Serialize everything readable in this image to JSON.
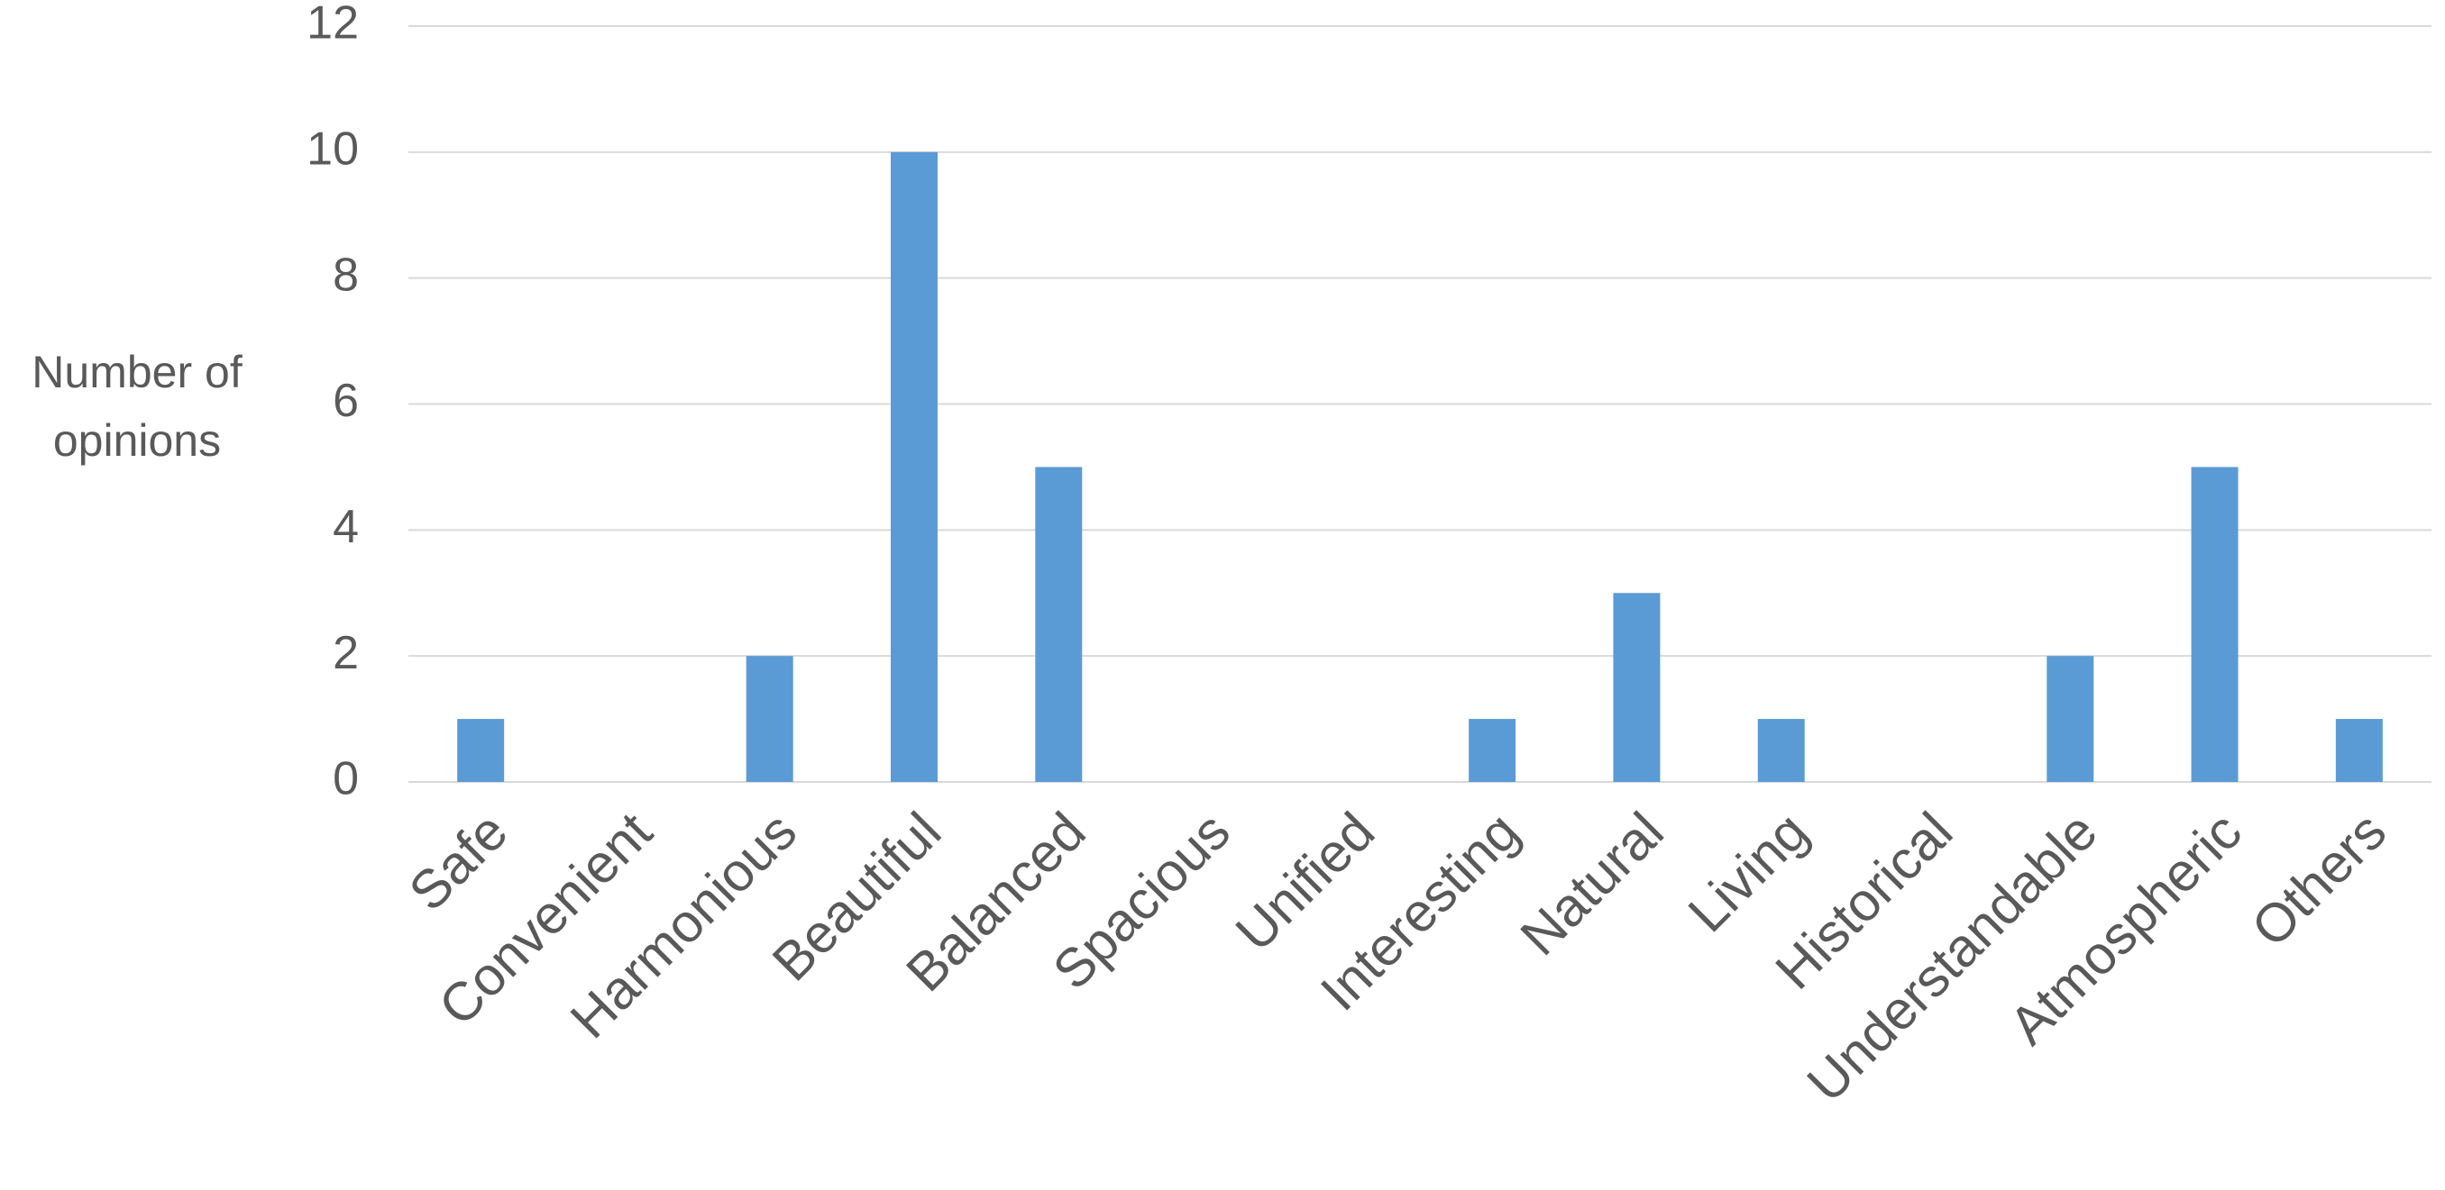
{
  "chart_data": {
    "type": "bar",
    "y_label": "Number of opinions",
    "categories": [
      "Safe",
      "Convenient",
      "Harmonious",
      "Beautiful",
      "Balanced",
      "Spacious",
      "Unified",
      "Interesting",
      "Natural",
      "Living",
      "Historical",
      "Understandable",
      "Atmospheric",
      "Others"
    ],
    "values": [
      1,
      0,
      2,
      10,
      5,
      0,
      0,
      1,
      3,
      1,
      0,
      2,
      5,
      1
    ],
    "color": "#5b9bd5",
    "ylim": [
      0,
      12
    ],
    "yticks": [
      0,
      2,
      4,
      6,
      8,
      10,
      12
    ],
    "grid": true
  }
}
